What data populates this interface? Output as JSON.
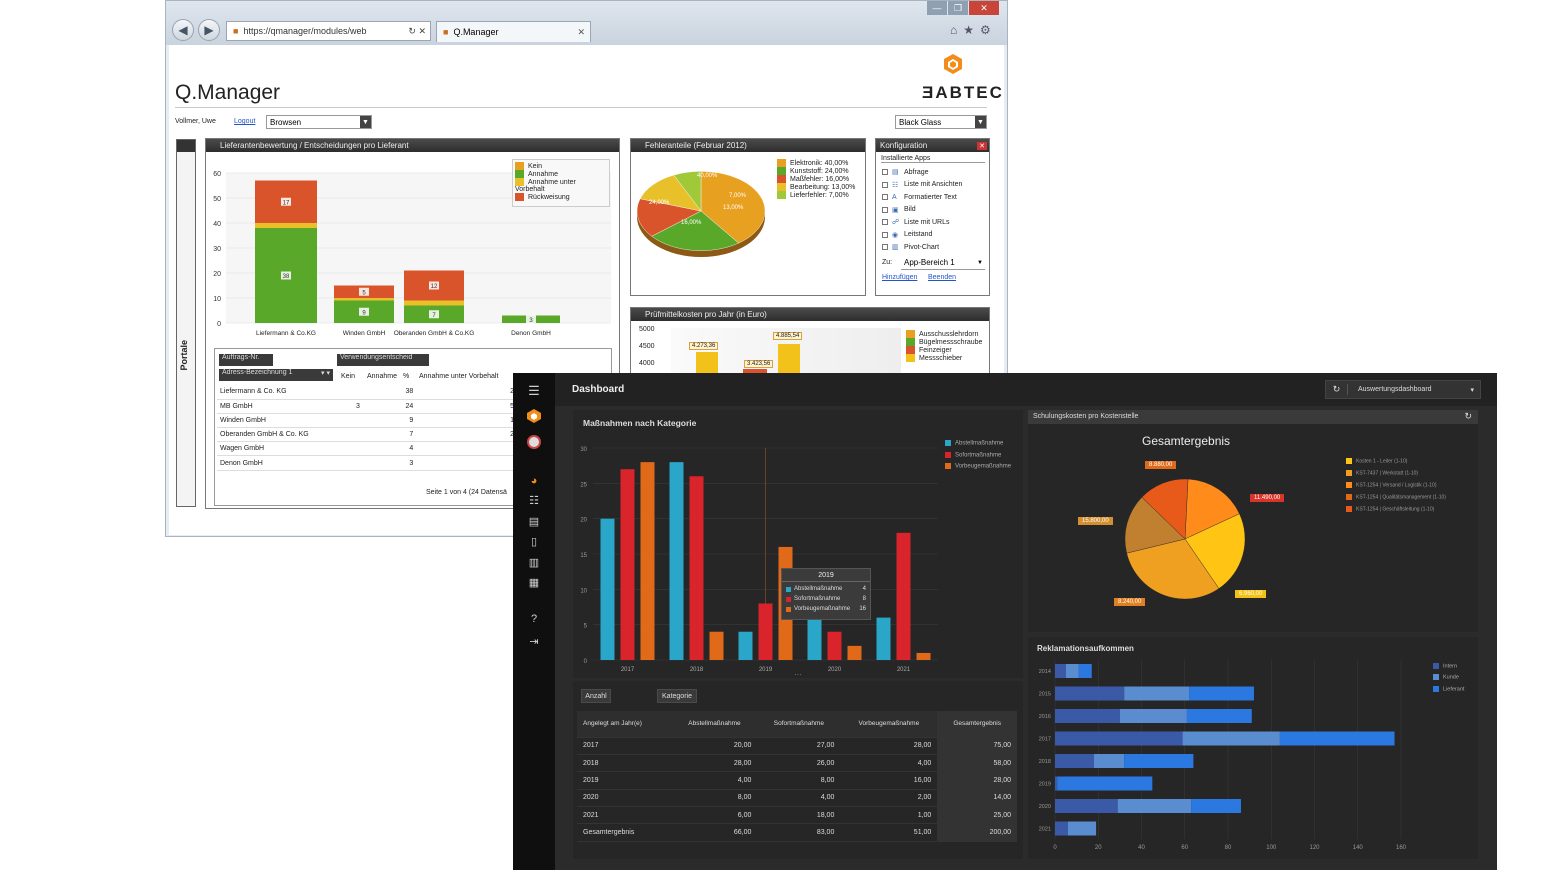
{
  "browser": {
    "url": "https://qmanager/modules/web",
    "tab_title": "Q.Manager",
    "min": "—",
    "max": "❐",
    "close": "✕"
  },
  "qm": {
    "app_title": "Q.Manager",
    "brand": "ƎABTEC",
    "user": "Vollmer, Uwe",
    "logout": "Logout",
    "mode_value": "Browsen",
    "theme_value": "Black Glass",
    "portal_label": "Portale"
  },
  "supplier_panel": {
    "title": "Lieferantenbewertung / Entscheidungen pro Lieferant",
    "legend": [
      "Kein",
      "Annahme",
      "Annahme unter Vorbehalt",
      "Rückweisung"
    ],
    "tag_order": "Auftrags-Nr.",
    "tag_decision": "Verwendungsentscheid",
    "group_select": "Adress-Bezeichnung 1",
    "col_headers": [
      "Kein",
      "Annahme",
      "%",
      "Annahme unter Vorbehalt"
    ],
    "rows": [
      {
        "name": "Liefermann & Co. KG",
        "kein": "",
        "annahme": "38",
        "pct": "",
        "vorbehalt": "2"
      },
      {
        "name": "MB GmbH",
        "kein": "3",
        "annahme": "24",
        "pct": "",
        "vorbehalt": "5"
      },
      {
        "name": "Winden GmbH",
        "kein": "",
        "annahme": "9",
        "pct": "",
        "vorbehalt": "1"
      },
      {
        "name": "Oberanden GmbH & Co. KG",
        "kein": "",
        "annahme": "7",
        "pct": "",
        "vorbehalt": "2"
      },
      {
        "name": "Wagen GmbH",
        "kein": "",
        "annahme": "4",
        "pct": "",
        "vorbehalt": ""
      },
      {
        "name": "Denon GmbH",
        "kein": "",
        "annahme": "3",
        "pct": "",
        "vorbehalt": ""
      }
    ],
    "pager": "Seite 1 von 4 (24 Datensä"
  },
  "error_panel": {
    "title": "Fehleranteile (Februar 2012)",
    "legend": [
      "Elektronik: 40,00%",
      "Kunststoff: 24,00%",
      "Maßfehler: 16,00%",
      "Bearbeitung: 13,00%",
      "Lieferfehler: 7,00%"
    ],
    "labels": [
      "40,00%",
      "24,00%",
      "7,00%",
      "13,00%",
      "16,00%"
    ]
  },
  "config_panel": {
    "title": "Konfiguration",
    "section": "Installierte Apps",
    "apps": [
      "Abfrage",
      "Liste mit Ansichten",
      "Formatierter Text",
      "Bild",
      "Liste mit URLs",
      "Leitstand",
      "Pivot-Chart"
    ],
    "to_label": "Zu:",
    "to_value": "App-Bereich 1",
    "add": "Hinzufügen",
    "finish": "Beenden"
  },
  "cost_panel": {
    "title": "Prüfmittelkosten pro Jahr (in Euro)",
    "yticks": [
      "5000",
      "4500",
      "4000"
    ],
    "labels": [
      "4.273,36",
      "4.885,54",
      "3.423,56"
    ],
    "legend": [
      "Ausschusslehrdorn",
      "Bügelmessschraube",
      "Feinzeiger",
      "Messschieber"
    ]
  },
  "dashboard": {
    "title": "Dashboard",
    "selector": "Auswertungsdashboard",
    "card1_title": "Maßnahmen nach Kategorie",
    "card2_header": "Schulungskosten pro Kostenstelle",
    "pie_title": "Gesamtergebnis",
    "pie_labels": [
      "8.880,00",
      "11.490,00",
      "15.800,00",
      "8.240,00",
      "6.960,00"
    ],
    "pie_legend": [
      "Kosten 1 - Leiter (1-10)",
      "KST-7437 | Werkstatt (1-10)",
      "KST-1254 | Versand / Logistik (1-10)",
      "KST-1254 | Qualitätsmanagement (1-10)",
      "KST-1254 | Geschäftsleitung (1-10)"
    ],
    "card3_title": "Reklamationsaufkommen",
    "hbar_legend": [
      "Intern",
      "Kunde",
      "Lieferant"
    ],
    "btn_count": "Anzahl",
    "btn_category": "Kategorie",
    "table_headers": [
      "Angelegt am Jahr(e)",
      "Abstellmaßnahme",
      "Sofortmaßnahme",
      "Vorbeugemaßnahme",
      "Gesamtergebnis"
    ],
    "table_rows": [
      [
        "2017",
        "20,00",
        "27,00",
        "28,00",
        "75,00"
      ],
      [
        "2018",
        "28,00",
        "26,00",
        "4,00",
        "58,00"
      ],
      [
        "2019",
        "4,00",
        "8,00",
        "16,00",
        "28,00"
      ],
      [
        "2020",
        "8,00",
        "4,00",
        "2,00",
        "14,00"
      ],
      [
        "2021",
        "6,00",
        "18,00",
        "1,00",
        "25,00"
      ],
      [
        "Gesamtergebnis",
        "66,00",
        "83,00",
        "51,00",
        "200,00"
      ]
    ],
    "tooltip": {
      "title": "2019",
      "rows": [
        [
          "Abstellmaßnahme",
          "4"
        ],
        [
          "Sofortmaßnahme",
          "8"
        ],
        [
          "Vorbeugemaßnahme",
          "16"
        ]
      ]
    }
  },
  "chart_data": [
    {
      "type": "bar",
      "title": "Lieferantenbewertung / Entscheidungen pro Lieferant",
      "categories": [
        "Liefermann & Co.KG",
        "Winden GmbH",
        "Oberanden GmbH & Co.KG",
        "Denon GmbH"
      ],
      "series": [
        {
          "name": "Annahme",
          "values": [
            38,
            9,
            7,
            3
          ]
        },
        {
          "name": "Annahme unter Vorbehalt",
          "values": [
            2,
            1,
            2,
            0
          ]
        },
        {
          "name": "Rückweisung",
          "values": [
            17,
            5,
            12,
            0
          ]
        }
      ],
      "yticks": [
        0,
        10,
        20,
        30,
        40,
        50,
        60
      ],
      "ylim": [
        0,
        60
      ],
      "colors": [
        "#5aa82a",
        "#e8c02a",
        "#d9542b"
      ]
    },
    {
      "type": "pie",
      "title": "Fehleranteile (Februar 2012)",
      "categories": [
        "Elektronik",
        "Kunststoff",
        "Maßfehler",
        "Bearbeitung",
        "Lieferfehler"
      ],
      "values": [
        40,
        24,
        16,
        13,
        7
      ]
    },
    {
      "type": "bar",
      "title": "Maßnahmen nach Kategorie",
      "categories": [
        "2017",
        "2018",
        "2019",
        "2020",
        "2021"
      ],
      "series": [
        {
          "name": "Abstellmaßnahme",
          "values": [
            20,
            28,
            4,
            8,
            6
          ]
        },
        {
          "name": "Sofortmaßnahme",
          "values": [
            27,
            26,
            8,
            4,
            18
          ]
        },
        {
          "name": "Vorbeugemaßnahme",
          "values": [
            28,
            4,
            16,
            2,
            1
          ]
        }
      ],
      "yticks": [
        0,
        5,
        10,
        15,
        20,
        25,
        30
      ],
      "ylim": [
        0,
        30
      ],
      "colors": [
        "#2aa6c8",
        "#d8242a",
        "#e06a1a"
      ]
    },
    {
      "type": "pie",
      "title": "Gesamtergebnis",
      "values": [
        8880,
        11490,
        15800,
        8240,
        6960
      ],
      "colors": [
        "#e85a1a",
        "#ff8c1a",
        "#ffc414",
        "#f0a020",
        "#c08030"
      ]
    },
    {
      "type": "bar",
      "orientation": "horizontal",
      "title": "Reklamationsaufkommen",
      "categories": [
        "2014",
        "2015",
        "2016",
        "2017",
        "2018",
        "2019",
        "2020",
        "2021"
      ],
      "series": [
        {
          "name": "Intern",
          "values": [
            5,
            32,
            30,
            59,
            18,
            1,
            29,
            6
          ]
        },
        {
          "name": "Kunde",
          "values": [
            6,
            30,
            31,
            45,
            14,
            0,
            34,
            13
          ]
        },
        {
          "name": "Lieferant",
          "values": [
            6,
            30,
            30,
            53,
            32,
            44,
            23,
            0
          ]
        }
      ],
      "xticks": [
        0,
        20,
        40,
        60,
        80,
        100,
        120,
        140,
        160
      ],
      "xlim": [
        0,
        160
      ],
      "colors": [
        "#3a5aa8",
        "#5a8cd0",
        "#2a78e0"
      ]
    }
  ]
}
